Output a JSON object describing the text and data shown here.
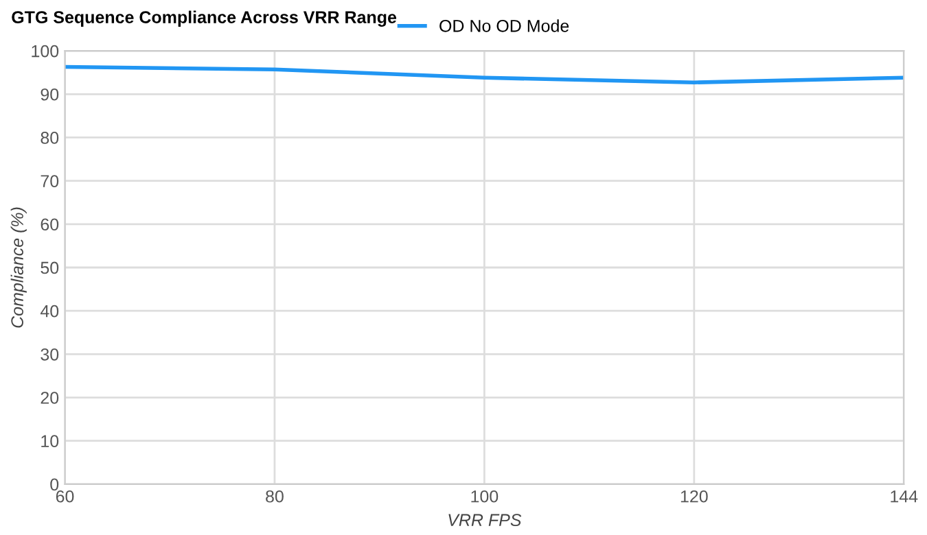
{
  "chart_data": {
    "type": "line",
    "title": "GTG Sequence Compliance Across VRR Range",
    "xlabel": "VRR FPS",
    "ylabel": "Compliance (%)",
    "categories": [
      "60",
      "80",
      "100",
      "120",
      "144"
    ],
    "series": [
      {
        "name": "OD No OD Mode",
        "color": "#2196f3",
        "values": [
          96.3,
          95.7,
          93.8,
          92.7,
          93.8
        ]
      }
    ],
    "ylim": [
      0,
      100
    ],
    "yticks": [
      0,
      10,
      20,
      30,
      40,
      50,
      60,
      70,
      80,
      90,
      100
    ],
    "grid": true,
    "legend": "top",
    "marker": "none",
    "line_style": "solid"
  }
}
